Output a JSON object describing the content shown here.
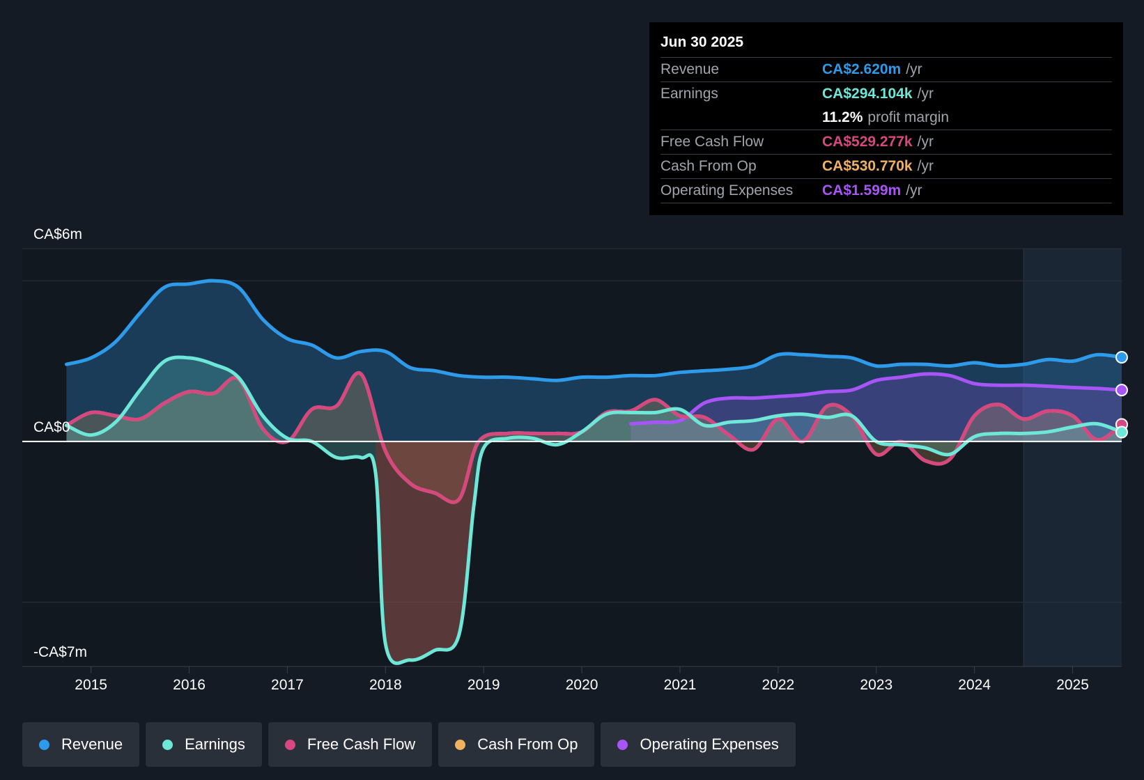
{
  "tooltip": {
    "date": "Jun 30 2025",
    "rows": [
      {
        "label": "Revenue",
        "value": "CA$2.620m",
        "unit": "/yr",
        "color": "#2e9bea"
      },
      {
        "label": "Earnings",
        "value": "CA$294.104k",
        "unit": "/yr",
        "color": "#6ee7d8"
      },
      {
        "label": "",
        "value": "11.2%",
        "unit": "profit margin",
        "color": "#ffffff"
      },
      {
        "label": "Free Cash Flow",
        "value": "CA$529.277k",
        "unit": "/yr",
        "color": "#d6487f"
      },
      {
        "label": "Cash From Op",
        "value": "CA$530.770k",
        "unit": "/yr",
        "color": "#f0b25e"
      },
      {
        "label": "Operating Expenses",
        "value": "CA$1.599m",
        "unit": "/yr",
        "color": "#a855f7"
      }
    ]
  },
  "legend": [
    {
      "label": "Revenue",
      "color": "#2e9bea"
    },
    {
      "label": "Earnings",
      "color": "#6ee7d8"
    },
    {
      "label": "Free Cash Flow",
      "color": "#d6487f"
    },
    {
      "label": "Cash From Op",
      "color": "#f0b25e"
    },
    {
      "label": "Operating Expenses",
      "color": "#a855f7"
    }
  ],
  "chart_data": {
    "type": "line",
    "title": "",
    "xlabel": "",
    "ylabel": "",
    "y_axis_labels": [
      {
        "text": "CA$6m",
        "value": 6
      },
      {
        "text": "CA$0",
        "value": 0
      },
      {
        "text": "-CA$7m",
        "value": -7
      }
    ],
    "ylim": [
      -7,
      6
    ],
    "xlim": [
      2014.3,
      2025.5
    ],
    "x_ticks": [
      2015,
      2016,
      2017,
      2018,
      2019,
      2020,
      2021,
      2022,
      2023,
      2024,
      2025
    ],
    "forecast_start": 2024.5,
    "series": [
      {
        "name": "Revenue",
        "color": "#2e9bea",
        "x": [
          2014.75,
          2015.0,
          2015.25,
          2015.5,
          2015.75,
          2016.0,
          2016.25,
          2016.5,
          2016.75,
          2017.0,
          2017.25,
          2017.5,
          2017.75,
          2018.0,
          2018.25,
          2018.5,
          2018.75,
          2019.0,
          2019.25,
          2019.5,
          2019.75,
          2020.0,
          2020.25,
          2020.5,
          2020.75,
          2021.0,
          2021.25,
          2021.5,
          2021.75,
          2022.0,
          2022.25,
          2022.5,
          2022.75,
          2023.0,
          2023.25,
          2023.5,
          2023.75,
          2024.0,
          2024.25,
          2024.5,
          2024.75,
          2025.0,
          2025.25,
          2025.5
        ],
        "values": [
          2.4,
          2.6,
          3.1,
          4.0,
          4.8,
          4.9,
          5.0,
          4.8,
          3.8,
          3.2,
          3.0,
          2.6,
          2.8,
          2.8,
          2.3,
          2.2,
          2.05,
          2.0,
          2.0,
          1.95,
          1.9,
          2.0,
          2.0,
          2.05,
          2.05,
          2.15,
          2.2,
          2.25,
          2.35,
          2.7,
          2.7,
          2.65,
          2.6,
          2.35,
          2.4,
          2.4,
          2.35,
          2.45,
          2.35,
          2.4,
          2.55,
          2.5,
          2.7,
          2.62
        ]
      },
      {
        "name": "Earnings",
        "color": "#6ee7d8",
        "x": [
          2014.75,
          2015.0,
          2015.25,
          2015.5,
          2015.75,
          2016.0,
          2016.25,
          2016.5,
          2016.75,
          2017.0,
          2017.25,
          2017.5,
          2017.75,
          2017.9,
          2018.0,
          2018.25,
          2018.5,
          2018.75,
          2018.9,
          2019.0,
          2019.25,
          2019.5,
          2019.75,
          2020.0,
          2020.25,
          2020.5,
          2020.75,
          2021.0,
          2021.25,
          2021.5,
          2021.75,
          2022.0,
          2022.25,
          2022.5,
          2022.75,
          2023.0,
          2023.25,
          2023.5,
          2023.75,
          2024.0,
          2024.25,
          2024.5,
          2024.75,
          2025.0,
          2025.25,
          2025.5
        ],
        "values": [
          0.5,
          0.2,
          0.6,
          1.6,
          2.5,
          2.6,
          2.4,
          2.0,
          0.8,
          0.1,
          0.0,
          -0.5,
          -0.5,
          -1.0,
          -6.3,
          -6.8,
          -6.5,
          -6.0,
          -2.0,
          -0.2,
          0.1,
          0.1,
          -0.1,
          0.3,
          0.85,
          0.9,
          0.9,
          1.0,
          0.5,
          0.6,
          0.65,
          0.8,
          0.85,
          0.75,
          0.8,
          0.0,
          -0.1,
          -0.2,
          -0.4,
          0.15,
          0.25,
          0.25,
          0.3,
          0.45,
          0.55,
          0.29
        ]
      },
      {
        "name": "Free Cash Flow",
        "color": "#d6487f",
        "x": [
          2014.75,
          2015.0,
          2015.25,
          2015.5,
          2015.75,
          2016.0,
          2016.25,
          2016.5,
          2016.75,
          2017.0,
          2017.25,
          2017.5,
          2017.75,
          2018.0,
          2018.25,
          2018.5,
          2018.75,
          2018.95,
          2019.25,
          2019.5,
          2019.75,
          2020.0,
          2020.25,
          2020.5,
          2020.75,
          2021.0,
          2021.25,
          2021.5,
          2021.75,
          2022.0,
          2022.25,
          2022.5,
          2022.75,
          2023.0,
          2023.25,
          2023.5,
          2023.75,
          2024.0,
          2024.25,
          2024.5,
          2024.75,
          2025.0,
          2025.25,
          2025.5
        ],
        "values": [
          0.5,
          0.9,
          0.8,
          0.7,
          1.2,
          1.55,
          1.5,
          1.95,
          0.4,
          0.0,
          1.0,
          1.1,
          2.1,
          -0.3,
          -1.3,
          -1.6,
          -1.8,
          0.0,
          0.25,
          0.25,
          0.25,
          0.3,
          0.9,
          0.95,
          1.3,
          0.8,
          0.75,
          0.2,
          -0.25,
          0.7,
          0.0,
          1.1,
          0.8,
          -0.4,
          0.0,
          -0.6,
          -0.55,
          0.8,
          1.15,
          0.7,
          0.95,
          0.8,
          0.05,
          0.53
        ]
      },
      {
        "name": "Cash From Op",
        "color": "#f0b25e",
        "x": [
          2014.75,
          2015.0,
          2015.25,
          2015.5,
          2015.75,
          2016.0,
          2016.25,
          2016.5,
          2016.75,
          2017.0,
          2017.25,
          2017.5,
          2017.75,
          2018.0,
          2018.25,
          2018.5,
          2018.75,
          2018.95,
          2019.25,
          2019.5,
          2019.75,
          2020.0,
          2020.25,
          2020.5,
          2020.75,
          2021.0,
          2021.25,
          2021.5,
          2021.75,
          2022.0,
          2022.25,
          2022.5,
          2022.75,
          2023.0,
          2023.25,
          2023.5,
          2023.75,
          2024.0,
          2024.25,
          2024.5,
          2024.75,
          2025.0,
          2025.25,
          2025.5
        ],
        "values": [
          0.5,
          0.9,
          0.8,
          0.7,
          1.2,
          1.55,
          1.5,
          1.95,
          0.4,
          0.0,
          1.0,
          1.1,
          2.1,
          -0.3,
          -1.3,
          -1.6,
          -1.8,
          0.0,
          0.25,
          0.25,
          0.25,
          0.3,
          0.9,
          0.95,
          1.3,
          0.8,
          0.75,
          0.2,
          -0.25,
          0.7,
          0.0,
          1.1,
          0.8,
          -0.4,
          0.0,
          -0.6,
          -0.55,
          0.8,
          1.15,
          0.7,
          0.95,
          0.8,
          0.05,
          0.53
        ]
      },
      {
        "name": "Operating Expenses",
        "color": "#a855f7",
        "x": [
          2020.5,
          2020.75,
          2021.0,
          2021.25,
          2021.5,
          2021.75,
          2022.0,
          2022.25,
          2022.5,
          2022.75,
          2023.0,
          2023.25,
          2023.5,
          2023.75,
          2024.0,
          2024.25,
          2024.5,
          2024.75,
          2025.0,
          2025.25,
          2025.5
        ],
        "values": [
          0.55,
          0.6,
          0.65,
          1.2,
          1.35,
          1.35,
          1.4,
          1.45,
          1.55,
          1.6,
          1.9,
          2.0,
          2.1,
          2.05,
          1.8,
          1.75,
          1.75,
          1.72,
          1.68,
          1.65,
          1.6
        ]
      }
    ]
  }
}
